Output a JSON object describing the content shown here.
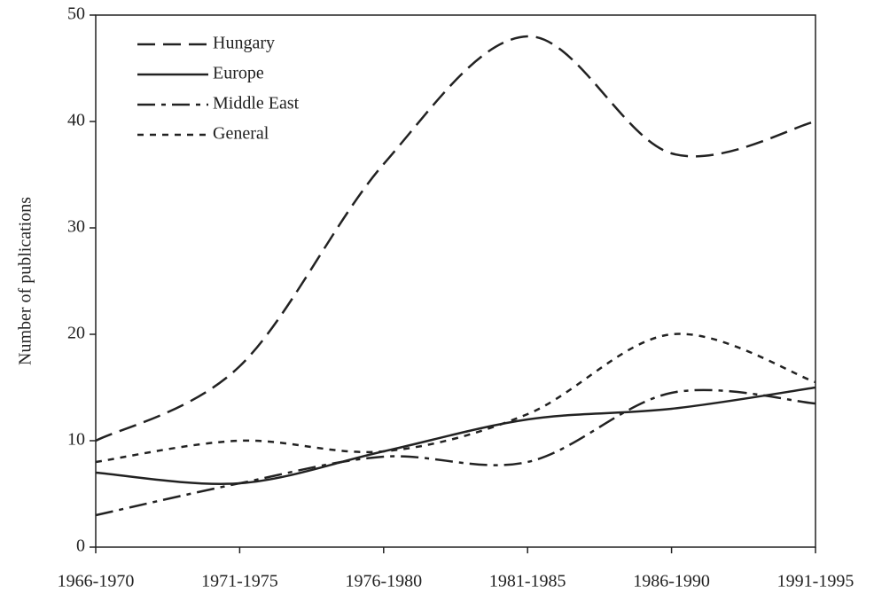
{
  "chart_data": {
    "type": "line",
    "y_label": "Number of publications",
    "categories": [
      "1966-1970",
      "1971-1975",
      "1976-1980",
      "1981-1985",
      "1986-1990",
      "1991-1995"
    ],
    "series": [
      {
        "name": "Hungary",
        "color": "#222222",
        "dash": "long",
        "values": [
          10,
          17,
          36,
          48,
          37,
          40
        ]
      },
      {
        "name": "Europe",
        "color": "#222222",
        "dash": "solid",
        "values": [
          7,
          6,
          9,
          12,
          13,
          15
        ]
      },
      {
        "name": "Middle East",
        "color": "#222222",
        "dash": "dashdot",
        "values": [
          3,
          6,
          8.5,
          8,
          14.5,
          13.5
        ]
      },
      {
        "name": "General",
        "color": "#222222",
        "dash": "short",
        "values": [
          8,
          10,
          9,
          12.5,
          20,
          15.5
        ]
      }
    ],
    "ylim": [
      0,
      50
    ],
    "yticks": [
      0,
      10,
      20,
      30,
      40,
      50
    ],
    "legend": "upper left",
    "smooth": true
  }
}
